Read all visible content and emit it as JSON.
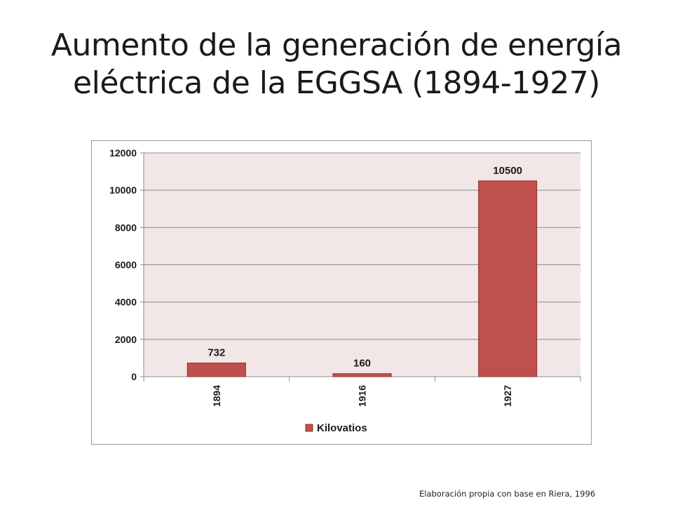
{
  "slide": {
    "title_line1": "Aumento de la generación de energía",
    "title_line2": "eléctrica de la EGGSA (1894-1927)",
    "source_note": "Elaboración propia con base en Riera, 1996"
  },
  "colors": {
    "bar": "#c0504d",
    "bar_stroke": "#8b2f2c",
    "plot_bg": "#f2e6e6",
    "grid": "#8c8c8c"
  },
  "chart_data": {
    "type": "bar",
    "categories": [
      "1894",
      "1916",
      "1927"
    ],
    "series": [
      {
        "name": "Kilovatios",
        "values": [
          732,
          160,
          10500
        ]
      }
    ],
    "data_labels": [
      "732",
      "160",
      "10500"
    ],
    "ylim": [
      0,
      12000
    ],
    "yticks": [
      0,
      2000,
      4000,
      6000,
      8000,
      10000,
      12000
    ],
    "ytick_labels": [
      "0",
      "2000",
      "4000",
      "6000",
      "8000",
      "10000",
      "12000"
    ],
    "title": "",
    "xlabel": "",
    "ylabel": "",
    "grid": true,
    "legend_position": "bottom"
  }
}
